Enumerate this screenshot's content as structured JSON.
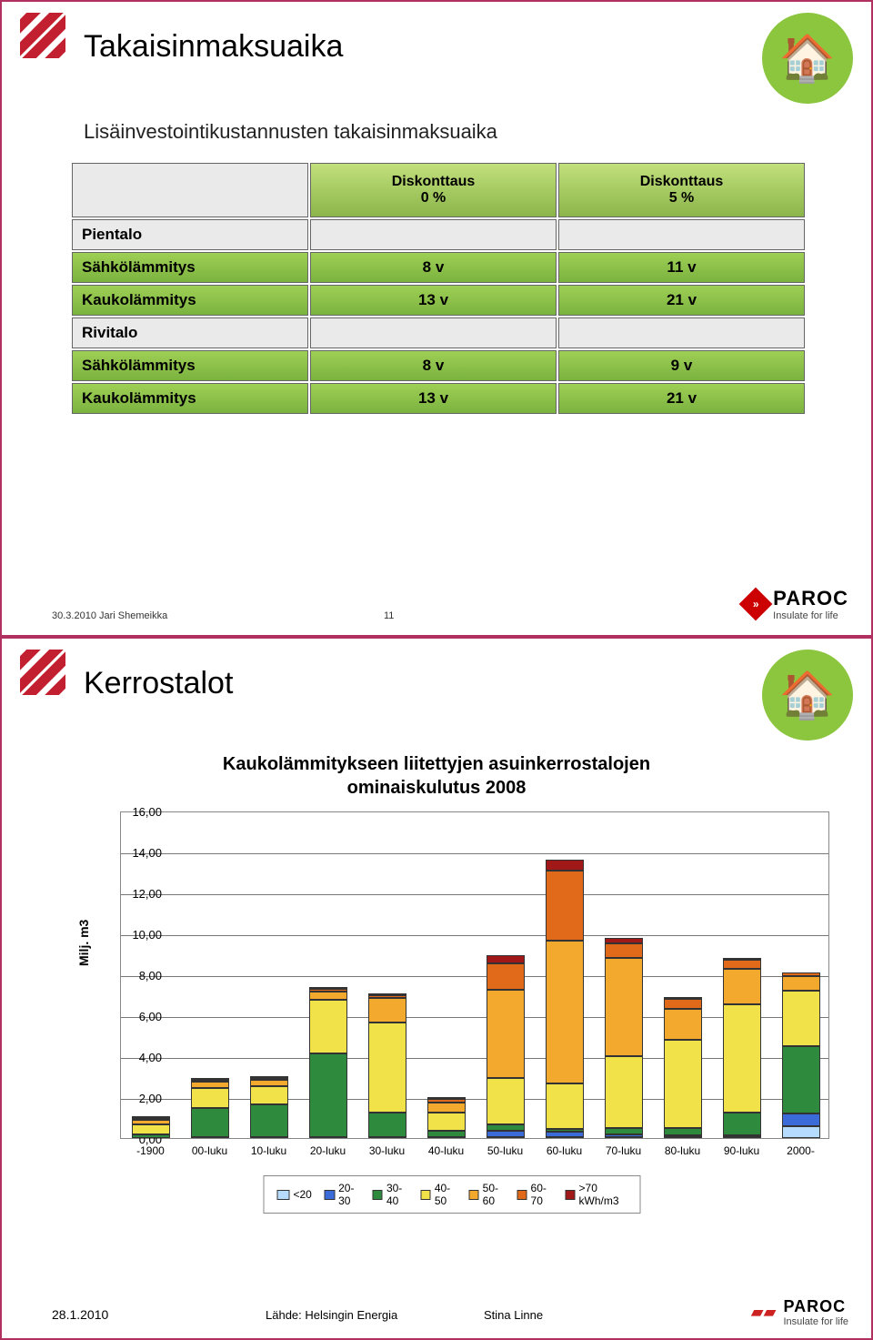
{
  "slide1": {
    "title": "Takaisinmaksuaika",
    "subtitle": "Lisäinvestointikustannusten takaisinmaksuaika",
    "table": {
      "headers": {
        "blank": "",
        "c1": "Diskonttaus\n0 %",
        "c2": "Diskonttaus\n5 %"
      },
      "sections": [
        {
          "label": "Pientalo",
          "rows": [
            {
              "label": "Sähkölämmitys",
              "c1": "8 v",
              "c2": "11 v"
            },
            {
              "label": "Kaukolämmitys",
              "c1": "13 v",
              "c2": "21 v"
            }
          ]
        },
        {
          "label": "Rivitalo",
          "rows": [
            {
              "label": "Sähkölämmitys",
              "c1": "8 v",
              "c2": "9 v"
            },
            {
              "label": "Kaukolämmitys",
              "c1": "13 v",
              "c2": "21 v"
            }
          ]
        }
      ]
    },
    "footer_date": "30.3.2010 Jari Shemeikka",
    "footer_page": "11",
    "paroc": {
      "name": "PAROC",
      "tag": "Insulate for life"
    }
  },
  "slide2": {
    "title": "Kerrostalot",
    "chart_title": "Kaukolämmitykseen liitettyjen asuinkerrostalojen\nominaiskulutus 2008",
    "y_label": "Milj. m3",
    "ylim": [
      0,
      16
    ],
    "ytick_step": 2,
    "categories": [
      "-1900",
      "00-luku",
      "10-luku",
      "20-luku",
      "30-luku",
      "40-luku",
      "50-luku",
      "60-luku",
      "70-luku",
      "80-luku",
      "90-luku",
      "2000-"
    ],
    "series_names": [
      "<20",
      "20-30",
      "30-40",
      "40-50",
      "50-60",
      "60-70",
      ">70 kWh/m3"
    ],
    "series_colors": [
      "#b5dcff",
      "#3a6bd8",
      "#2e8b3d",
      "#f2e24a",
      "#f2a92e",
      "#e06a1a",
      "#a01818"
    ],
    "stacks": [
      [
        0.0,
        0.0,
        0.2,
        0.45,
        0.25,
        0.1,
        0.05
      ],
      [
        0.0,
        0.05,
        1.4,
        1.0,
        0.3,
        0.1,
        0.05
      ],
      [
        0.0,
        0.05,
        1.6,
        0.9,
        0.3,
        0.1,
        0.05
      ],
      [
        0.0,
        0.05,
        4.1,
        2.6,
        0.4,
        0.15,
        0.05
      ],
      [
        0.0,
        0.05,
        1.2,
        4.4,
        1.2,
        0.15,
        0.05
      ],
      [
        0.0,
        0.05,
        0.3,
        0.9,
        0.5,
        0.15,
        0.05
      ],
      [
        0.05,
        0.3,
        0.3,
        2.3,
        4.3,
        1.3,
        0.4
      ],
      [
        0.05,
        0.25,
        0.15,
        2.2,
        7.0,
        3.4,
        0.55
      ],
      [
        0.05,
        0.15,
        0.3,
        3.5,
        4.8,
        0.7,
        0.3
      ],
      [
        0.05,
        0.1,
        0.35,
        4.3,
        1.5,
        0.5,
        0.1
      ],
      [
        0.05,
        0.1,
        1.1,
        5.3,
        1.7,
        0.45,
        0.1
      ],
      [
        0.6,
        0.6,
        3.3,
        2.7,
        0.7,
        0.2,
        0.0
      ]
    ],
    "source": "Lähde: Helsingin Energia",
    "presenter": "Stina Linne",
    "date": "28.1.2010",
    "paroc": {
      "name": "PAROC",
      "tag": "Insulate for life"
    }
  },
  "colors": {
    "hatch": "#c22030",
    "border": "#a03050",
    "green_badge": "#8cc63f"
  }
}
